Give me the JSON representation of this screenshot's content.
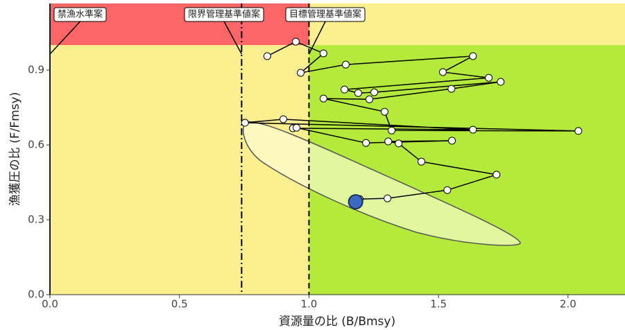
{
  "chart_data": {
    "type": "scatter",
    "x_label": "資源量の比 (B/Bmsy)",
    "y_label": "漁獲圧の比 (F/Fmsy)",
    "xlim": [
      0,
      2.22
    ],
    "ylim": [
      0,
      1.167
    ],
    "xticks": [
      {
        "value": 0,
        "label": "0.0"
      },
      0.5,
      {
        "value": 1,
        "label": "1.0"
      },
      1.5,
      {
        "value": 2,
        "label": "2.0"
      }
    ],
    "yticks": [
      {
        "value": 0,
        "label": "0.0"
      },
      0.3,
      0.6,
      0.9
    ],
    "x_boundary": 1,
    "y_boundary": 1,
    "zone_colors": {
      "overfished_overfishing": "#fc6666",
      "overfished": "#fcef8f",
      "overfishing": "#fcef8f",
      "healthy": "#b3ea3c"
    },
    "reference_lines": [
      {
        "value": 0,
        "label": "禁漁水準案",
        "dash": "none"
      },
      {
        "value": 0.74,
        "label": "限界管理基準値案",
        "dash": "10 4 2 4"
      },
      {
        "value": 1,
        "label": "目標管理基準値案",
        "dash": "8 5"
      }
    ],
    "x": [
      0.839,
      0.949,
      1.056,
      0.968,
      1.142,
      1.633,
      1.517,
      1.694,
      1.137,
      1.19,
      1.252,
      1.74,
      1.55,
      1.233,
      1.056,
      1.292,
      1.319,
      2.04,
      0.753,
      0.901,
      1.633,
      0.938,
      0.952,
      1.22,
      1.552,
      1.306,
      1.346,
      1.434,
      1.724,
      1.534,
      1.303,
      1.196,
      1.18
    ],
    "values": [
      0.956,
      1.014,
      0.967,
      0.889,
      0.922,
      0.956,
      0.892,
      0.869,
      0.822,
      0.808,
      0.811,
      0.853,
      0.825,
      0.783,
      0.786,
      0.733,
      0.658,
      0.656,
      0.689,
      0.703,
      0.661,
      0.667,
      0.669,
      0.608,
      0.617,
      0.614,
      0.606,
      0.533,
      0.481,
      0.419,
      0.386,
      0.383,
      0.372
    ],
    "marker_color": "#ffffff",
    "current_color": "#3a6bc0",
    "line_color": "#000000"
  }
}
